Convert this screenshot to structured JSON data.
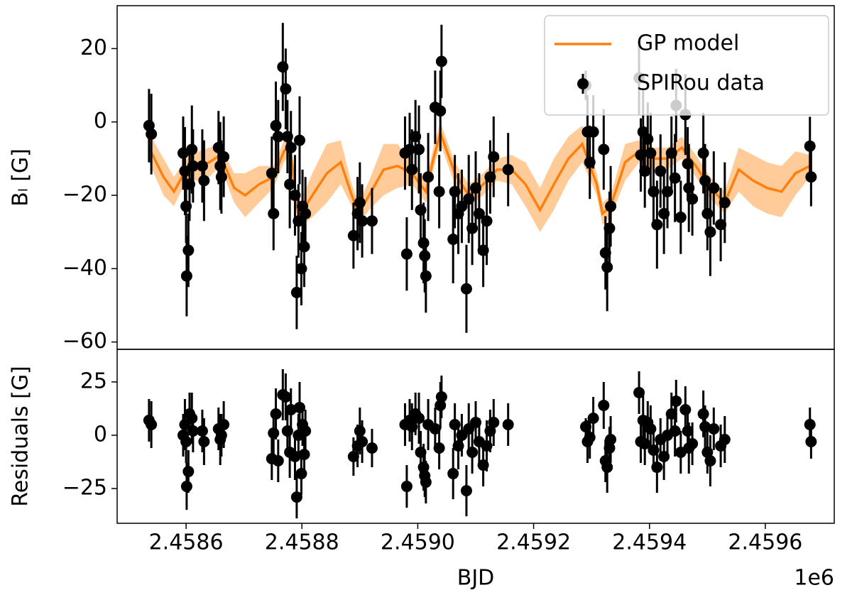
{
  "chart_data": [
    {
      "type": "scatter",
      "ylabel": "Bₗ [G]",
      "xlim": [
        2458481,
        2459719
      ],
      "ylim": [
        -62,
        31.7
      ],
      "yticks": [
        {
          "value": -60,
          "label": "−60"
        },
        {
          "value": -40,
          "label": "−40"
        },
        {
          "value": -20,
          "label": "−20"
        },
        0,
        20
      ],
      "legend": "upper right",
      "series": [
        {
          "name": "GP model",
          "color": "#ff7f0e",
          "band_color": "#ffcc99",
          "kind": "line",
          "x": [
            2458536,
            2458561,
            2458579,
            2458600,
            2458622,
            2458640,
            2458659,
            2458683,
            2458702,
            2458726,
            2458751,
            2458769,
            2458779,
            2458794,
            2458818,
            2458843,
            2458867,
            2458886,
            2458898,
            2458916,
            2458941,
            2458965,
            2458990,
            2459014,
            2459027,
            2459039,
            2459064,
            2459088,
            2459113,
            2459137,
            2459162,
            2459186,
            2459211,
            2459235,
            2459260,
            2459284,
            2459309,
            2459319,
            2459333,
            2459358,
            2459382,
            2459407,
            2459431,
            2459456,
            2459480,
            2459505,
            2459530,
            2459554,
            2459579,
            2459603,
            2459628,
            2459652,
            2459677
          ],
          "values": [
            -7,
            -15,
            -19,
            -13,
            -12,
            -11,
            -9,
            -18,
            -20,
            -17,
            -15,
            -8,
            -6,
            -26,
            -20,
            -14,
            -11,
            -20,
            -25,
            -20,
            -13,
            -12,
            -14,
            -19,
            -10,
            -3,
            -14,
            -20,
            -17,
            -13,
            -13,
            -17,
            -24,
            -17,
            -10,
            -6,
            -17,
            -25,
            -23,
            -11,
            -8,
            -10,
            -10,
            -7,
            -12,
            -18,
            -22,
            -13,
            -16,
            -18,
            -19,
            -14,
            -12
          ],
          "band_lower": [
            -11,
            -20,
            -23,
            -16,
            -16,
            -15,
            -12,
            -22,
            -26,
            -22,
            -18,
            -11,
            -9,
            -29,
            -26,
            -22,
            -17,
            -23,
            -28,
            -24,
            -20,
            -18,
            -17,
            -22,
            -13,
            -6,
            -17,
            -23,
            -20,
            -16,
            -17,
            -23,
            -30,
            -24,
            -16,
            -11,
            -20,
            -28,
            -26,
            -16,
            -11,
            -13,
            -13,
            -10,
            -15,
            -21,
            -25,
            -19,
            -23,
            -25,
            -26,
            -20,
            -15
          ],
          "band_upper": [
            -3,
            -10,
            -15,
            -10,
            -8,
            -7,
            -6,
            -14,
            -14,
            -12,
            -12,
            -5,
            -3,
            -23,
            -14,
            -6,
            -5,
            -17,
            -22,
            -16,
            -6,
            -6,
            -11,
            -16,
            -7,
            0,
            -11,
            -17,
            -14,
            -10,
            -9,
            -11,
            -18,
            -10,
            -4,
            -1,
            -14,
            -22,
            -20,
            -6,
            -5,
            -7,
            -7,
            -4,
            -9,
            -15,
            -19,
            -7,
            -9,
            -11,
            -12,
            -8,
            -9
          ]
        },
        {
          "name": "SPIRou data",
          "color": "#000000",
          "kind": "points",
          "x": [
            2458536,
            2458540,
            2458595,
            2458598,
            2458600,
            2458601,
            2458604,
            2458606,
            2458610,
            2458612,
            2458628,
            2458631,
            2458656,
            2458659,
            2458661,
            2458665,
            2458748,
            2458751,
            2458755,
            2458759,
            2458767,
            2458772,
            2458775,
            2458779,
            2458781,
            2458788,
            2458791,
            2458794,
            2458796,
            2458799,
            2458801,
            2458804,
            2458806,
            2458889,
            2458896,
            2458900,
            2458904,
            2458921,
            2458978,
            2458981,
            2458986,
            2458990,
            2458996,
            2459002,
            2459005,
            2459010,
            2459012,
            2459014,
            2459018,
            2459030,
            2459037,
            2459039,
            2459041,
            2459061,
            2459064,
            2459070,
            2459076,
            2459084,
            2459088,
            2459094,
            2459100,
            2459106,
            2459113,
            2459119,
            2459125,
            2459131,
            2459156,
            2459290,
            2459293,
            2459297,
            2459303,
            2459321,
            2459324,
            2459327,
            2459331,
            2459333,
            2459382,
            2459385,
            2459389,
            2459392,
            2459397,
            2459402,
            2459407,
            2459413,
            2459419,
            2459425,
            2459431,
            2459438,
            2459444,
            2459446,
            2459454,
            2459462,
            2459466,
            2459468,
            2459474,
            2459493,
            2459496,
            2459500,
            2459505,
            2459511,
            2459523,
            2459530,
            2459677,
            2459679
          ],
          "values": [
            -1,
            -3.3,
            -8.5,
            -13.4,
            -23,
            -42,
            -35,
            -17,
            -7.5,
            -12,
            -12,
            -16,
            -7,
            -12,
            -15,
            -9.5,
            -14,
            -25,
            -1,
            -4,
            15,
            9,
            -4,
            -17,
            -7,
            -20,
            -46.5,
            -27,
            -5,
            -40,
            -23,
            -34,
            -25,
            -31,
            -25,
            -22,
            -27,
            -27,
            -8.5,
            -36,
            -7.5,
            -13,
            -4,
            -7.5,
            -24,
            -33,
            -36.5,
            -42,
            -15,
            4,
            -19,
            3,
            16.5,
            -32,
            -19,
            -25,
            -23,
            -45.5,
            -21,
            -29,
            -18,
            -25,
            -35,
            -27,
            -15,
            -9.5,
            -13,
            10,
            -2.7,
            -11,
            -2.7,
            -7.5,
            -35.7,
            -39.6,
            -29,
            -23,
            12,
            -9,
            -2.7,
            -13.4,
            -4.7,
            -8.5,
            -19,
            -28,
            -13.4,
            -25,
            -19,
            -8.5,
            -15.3,
            4.5,
            -26,
            2,
            -11.4,
            -18,
            -21,
            -8.5,
            -16,
            -25,
            -30,
            -18,
            -28,
            -22,
            -6.6,
            -15
          ],
          "errors": [
            10,
            11,
            10,
            12,
            10,
            11,
            10,
            10,
            12,
            10,
            10,
            11,
            10,
            12,
            10,
            11,
            10,
            10,
            12,
            10,
            12,
            11,
            10,
            12,
            10,
            11,
            10,
            10,
            12,
            10,
            10,
            11,
            10,
            9,
            10,
            11,
            10,
            9,
            10,
            10,
            10,
            11,
            10,
            12,
            10,
            11,
            10,
            10,
            12,
            10,
            10,
            11,
            10,
            12,
            10,
            11,
            10,
            12,
            12,
            10,
            10,
            11,
            10,
            12,
            10,
            11,
            10,
            4,
            10,
            10,
            10,
            11,
            10,
            12,
            10,
            11,
            10,
            10,
            12,
            10,
            10,
            11,
            10,
            12,
            10,
            11,
            10,
            10,
            12,
            10,
            10,
            11,
            10,
            12,
            10,
            11,
            10,
            10,
            12,
            10,
            10,
            11,
            8,
            8
          ]
        }
      ]
    },
    {
      "type": "scatter",
      "ylabel": "Residuals [G]",
      "xlabel": "BJD",
      "offset_text": "1e6",
      "xlim": [
        2458481,
        2459719
      ],
      "ylim": [
        -41.3,
        40.3
      ],
      "xticks": [
        {
          "value": 2458600,
          "label": "2.4586"
        },
        {
          "value": 2458800,
          "label": "2.4588"
        },
        {
          "value": 2459000,
          "label": "2.4590"
        },
        {
          "value": 2459200,
          "label": "2.4592"
        },
        {
          "value": 2459400,
          "label": "2.4594"
        },
        {
          "value": 2459600,
          "label": "2.4596"
        }
      ],
      "yticks": [
        {
          "value": -25,
          "label": "−25"
        },
        0,
        25
      ],
      "series": [
        {
          "color": "#000000",
          "kind": "points",
          "x": [
            2458536,
            2458540,
            2458595,
            2458598,
            2458600,
            2458601,
            2458604,
            2458606,
            2458610,
            2458612,
            2458628,
            2458631,
            2458656,
            2458659,
            2458661,
            2458665,
            2458748,
            2458751,
            2458755,
            2458759,
            2458767,
            2458772,
            2458775,
            2458779,
            2458781,
            2458788,
            2458791,
            2458794,
            2458796,
            2458799,
            2458801,
            2458804,
            2458806,
            2458889,
            2458896,
            2458900,
            2458904,
            2458921,
            2458978,
            2458981,
            2458986,
            2458990,
            2458996,
            2459002,
            2459005,
            2459010,
            2459012,
            2459014,
            2459018,
            2459030,
            2459037,
            2459039,
            2459041,
            2459061,
            2459064,
            2459070,
            2459076,
            2459084,
            2459088,
            2459094,
            2459100,
            2459106,
            2459113,
            2459119,
            2459125,
            2459131,
            2459156,
            2459290,
            2459293,
            2459297,
            2459303,
            2459321,
            2459324,
            2459327,
            2459331,
            2459333,
            2459382,
            2459385,
            2459389,
            2459392,
            2459397,
            2459402,
            2459407,
            2459413,
            2459419,
            2459425,
            2459431,
            2459438,
            2459444,
            2459446,
            2459454,
            2459462,
            2459466,
            2459468,
            2459474,
            2459493,
            2459496,
            2459500,
            2459505,
            2459511,
            2459523,
            2459530,
            2459677,
            2459679
          ],
          "values": [
            7,
            5,
            0,
            5,
            -3,
            -24,
            -17,
            10,
            8,
            2,
            2,
            -3,
            3,
            -2,
            0,
            5,
            -11,
            1,
            10,
            -12,
            19,
            18,
            2,
            -8,
            12,
            -10,
            -29,
            0,
            13,
            -18,
            5,
            -9,
            2,
            -10,
            -5,
            2,
            -3,
            -6,
            5,
            -24,
            7,
            4,
            10,
            8,
            -8,
            -15,
            -19,
            -22,
            5,
            3,
            -6,
            14,
            18,
            -18,
            5,
            -5,
            0,
            -26,
            3,
            -8,
            6,
            -3,
            -14,
            -5,
            2,
            6,
            5,
            4,
            -3,
            -1,
            8,
            14,
            -12,
            -15,
            -6,
            -2,
            20,
            -3,
            7,
            -4,
            6,
            3,
            -7,
            -15,
            -2,
            -10,
            0,
            10,
            2,
            16,
            -8,
            12,
            2,
            -6,
            -4,
            10,
            4,
            -8,
            -12,
            3,
            -5,
            -2,
            5,
            -3
          ],
          "errors": [
            10,
            11,
            10,
            12,
            10,
            11,
            10,
            10,
            12,
            10,
            10,
            11,
            10,
            12,
            10,
            11,
            10,
            10,
            12,
            10,
            12,
            11,
            10,
            12,
            10,
            11,
            10,
            10,
            12,
            10,
            10,
            11,
            10,
            9,
            10,
            11,
            10,
            9,
            10,
            10,
            10,
            11,
            10,
            12,
            10,
            11,
            10,
            10,
            12,
            10,
            10,
            11,
            10,
            12,
            10,
            11,
            10,
            12,
            12,
            10,
            10,
            11,
            10,
            12,
            10,
            11,
            10,
            4,
            10,
            10,
            10,
            11,
            10,
            12,
            10,
            11,
            10,
            10,
            12,
            10,
            10,
            11,
            10,
            12,
            10,
            11,
            10,
            10,
            12,
            10,
            10,
            11,
            10,
            12,
            10,
            11,
            10,
            10,
            12,
            10,
            10,
            11,
            8,
            8
          ]
        }
      ]
    }
  ]
}
